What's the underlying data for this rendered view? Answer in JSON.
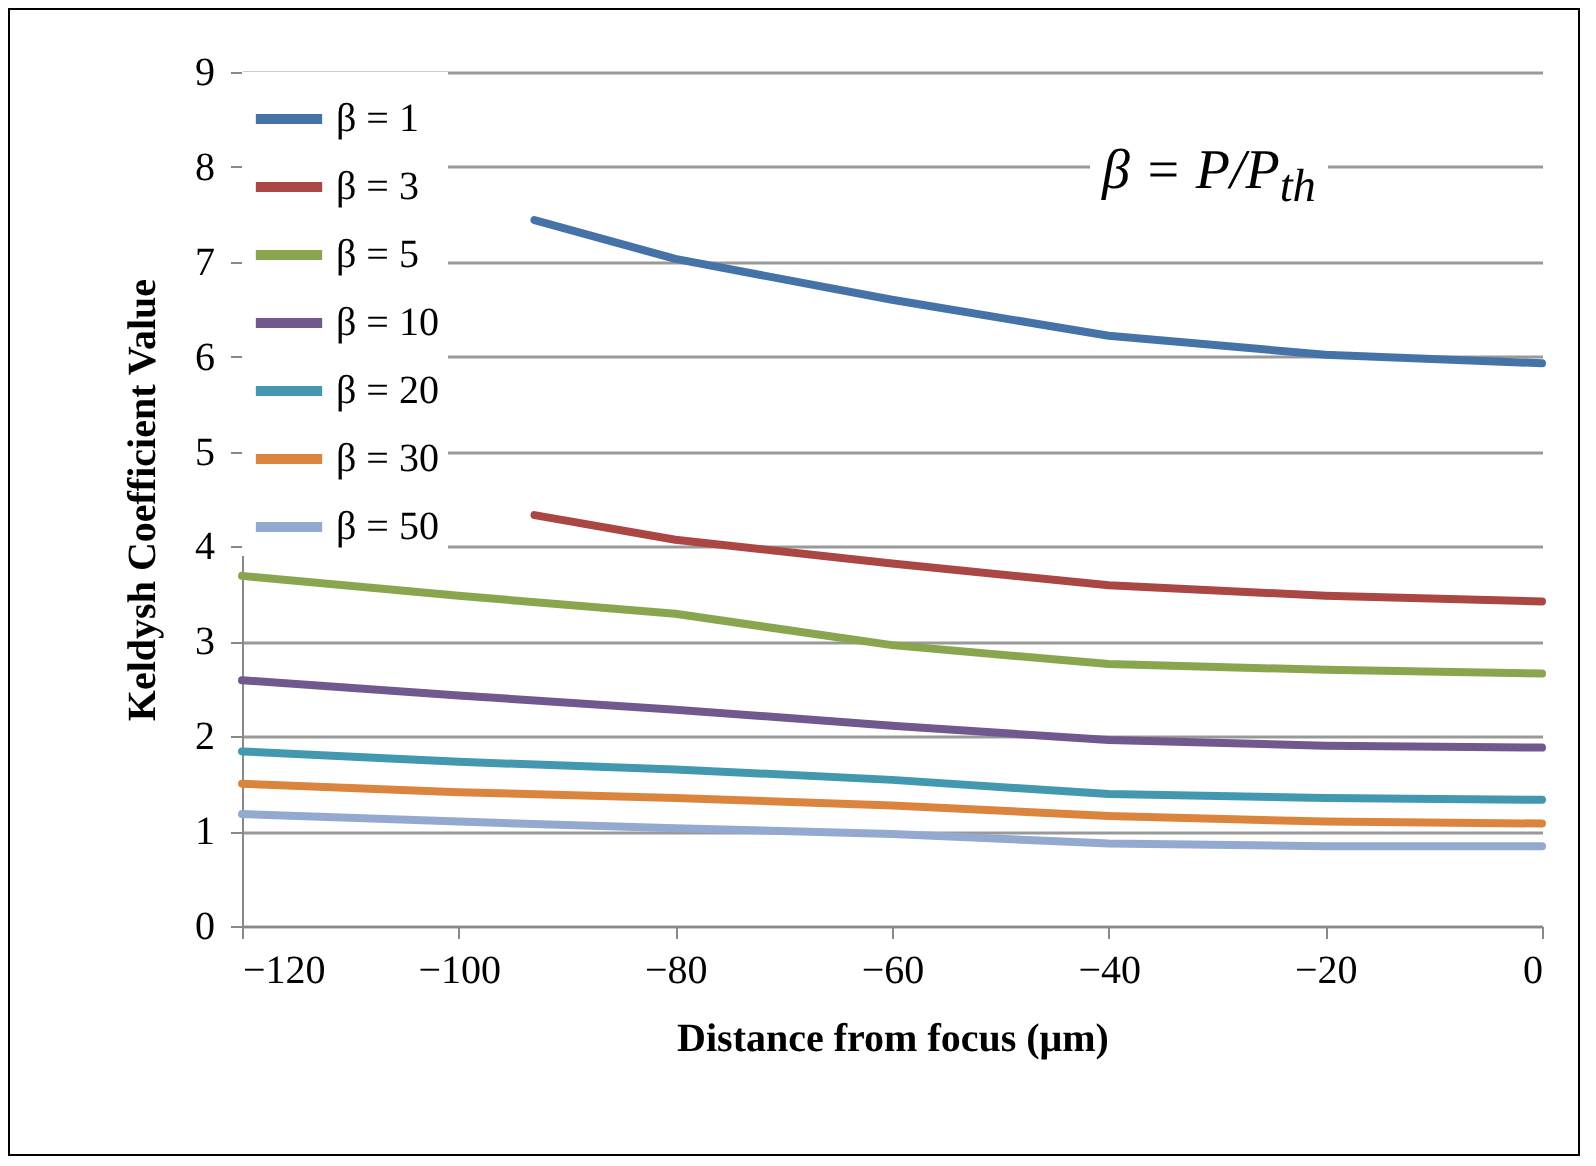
{
  "chart_data": {
    "type": "line",
    "xlabel": "Distance from focus (μm)",
    "ylabel": "Keldysh Coefficient Value",
    "x": [
      -120,
      -100,
      -80,
      -60,
      -40,
      -20,
      0
    ],
    "xlim": [
      -120,
      0
    ],
    "xticks": [
      -120,
      -100,
      -80,
      -60,
      -40,
      -20,
      0
    ],
    "ylim": [
      0,
      9
    ],
    "yticks": [
      0,
      1,
      2,
      3,
      4,
      5,
      6,
      7,
      8,
      9
    ],
    "grid": "y",
    "legend": "top left",
    "line_style": "solid",
    "marker": "none",
    "annotations": [
      "β = P/P$_{th}$"
    ],
    "series": [
      {
        "name": "β = 1",
        "color": "#4573a7",
        "x": [
          -93,
          -80,
          -60,
          -40,
          -20,
          0
        ],
        "values": [
          7.44,
          7.03,
          6.6,
          6.22,
          6.02,
          5.93
        ]
      },
      {
        "name": "β = 3",
        "color": "#aa4643",
        "x": [
          -93,
          -80,
          -60,
          -40,
          -20,
          0
        ],
        "values": [
          4.33,
          4.07,
          3.82,
          3.59,
          3.48,
          3.42
        ]
      },
      {
        "name": "β = 5",
        "color": "#89a54e",
        "values": [
          3.69,
          3.48,
          3.29,
          2.96,
          2.76,
          2.7,
          2.66
        ]
      },
      {
        "name": "β = 10",
        "color": "#71588f",
        "values": [
          2.59,
          2.43,
          2.28,
          2.11,
          1.96,
          1.9,
          1.88
        ]
      },
      {
        "name": "β = 20",
        "color": "#4198af",
        "values": [
          1.84,
          1.73,
          1.65,
          1.54,
          1.39,
          1.35,
          1.33
        ]
      },
      {
        "name": "β = 30",
        "color": "#db843d",
        "values": [
          1.5,
          1.41,
          1.35,
          1.27,
          1.16,
          1.1,
          1.08
        ]
      },
      {
        "name": "β = 50",
        "color": "#93a9cf",
        "values": [
          1.18,
          1.1,
          1.03,
          0.97,
          0.87,
          0.84,
          0.84
        ]
      }
    ]
  }
}
